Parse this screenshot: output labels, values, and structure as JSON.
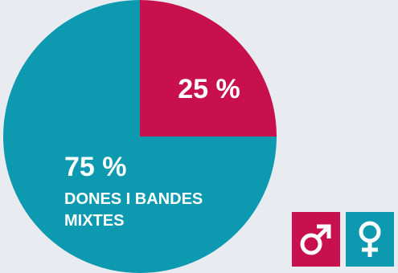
{
  "chart_data": {
    "type": "pie",
    "title": "",
    "slices": [
      {
        "value": 25,
        "label": "25 %",
        "caption": [],
        "color": "#c8104e"
      },
      {
        "value": 75,
        "label": "75 %",
        "caption": [
          "DONES I BANDES",
          "MIXTES"
        ],
        "color": "#0d99b0"
      }
    ],
    "legend": [
      {
        "icon": "male-symbol-icon",
        "color": "#c8104e"
      },
      {
        "icon": "female-symbol-icon",
        "color": "#0d99b0"
      }
    ]
  }
}
